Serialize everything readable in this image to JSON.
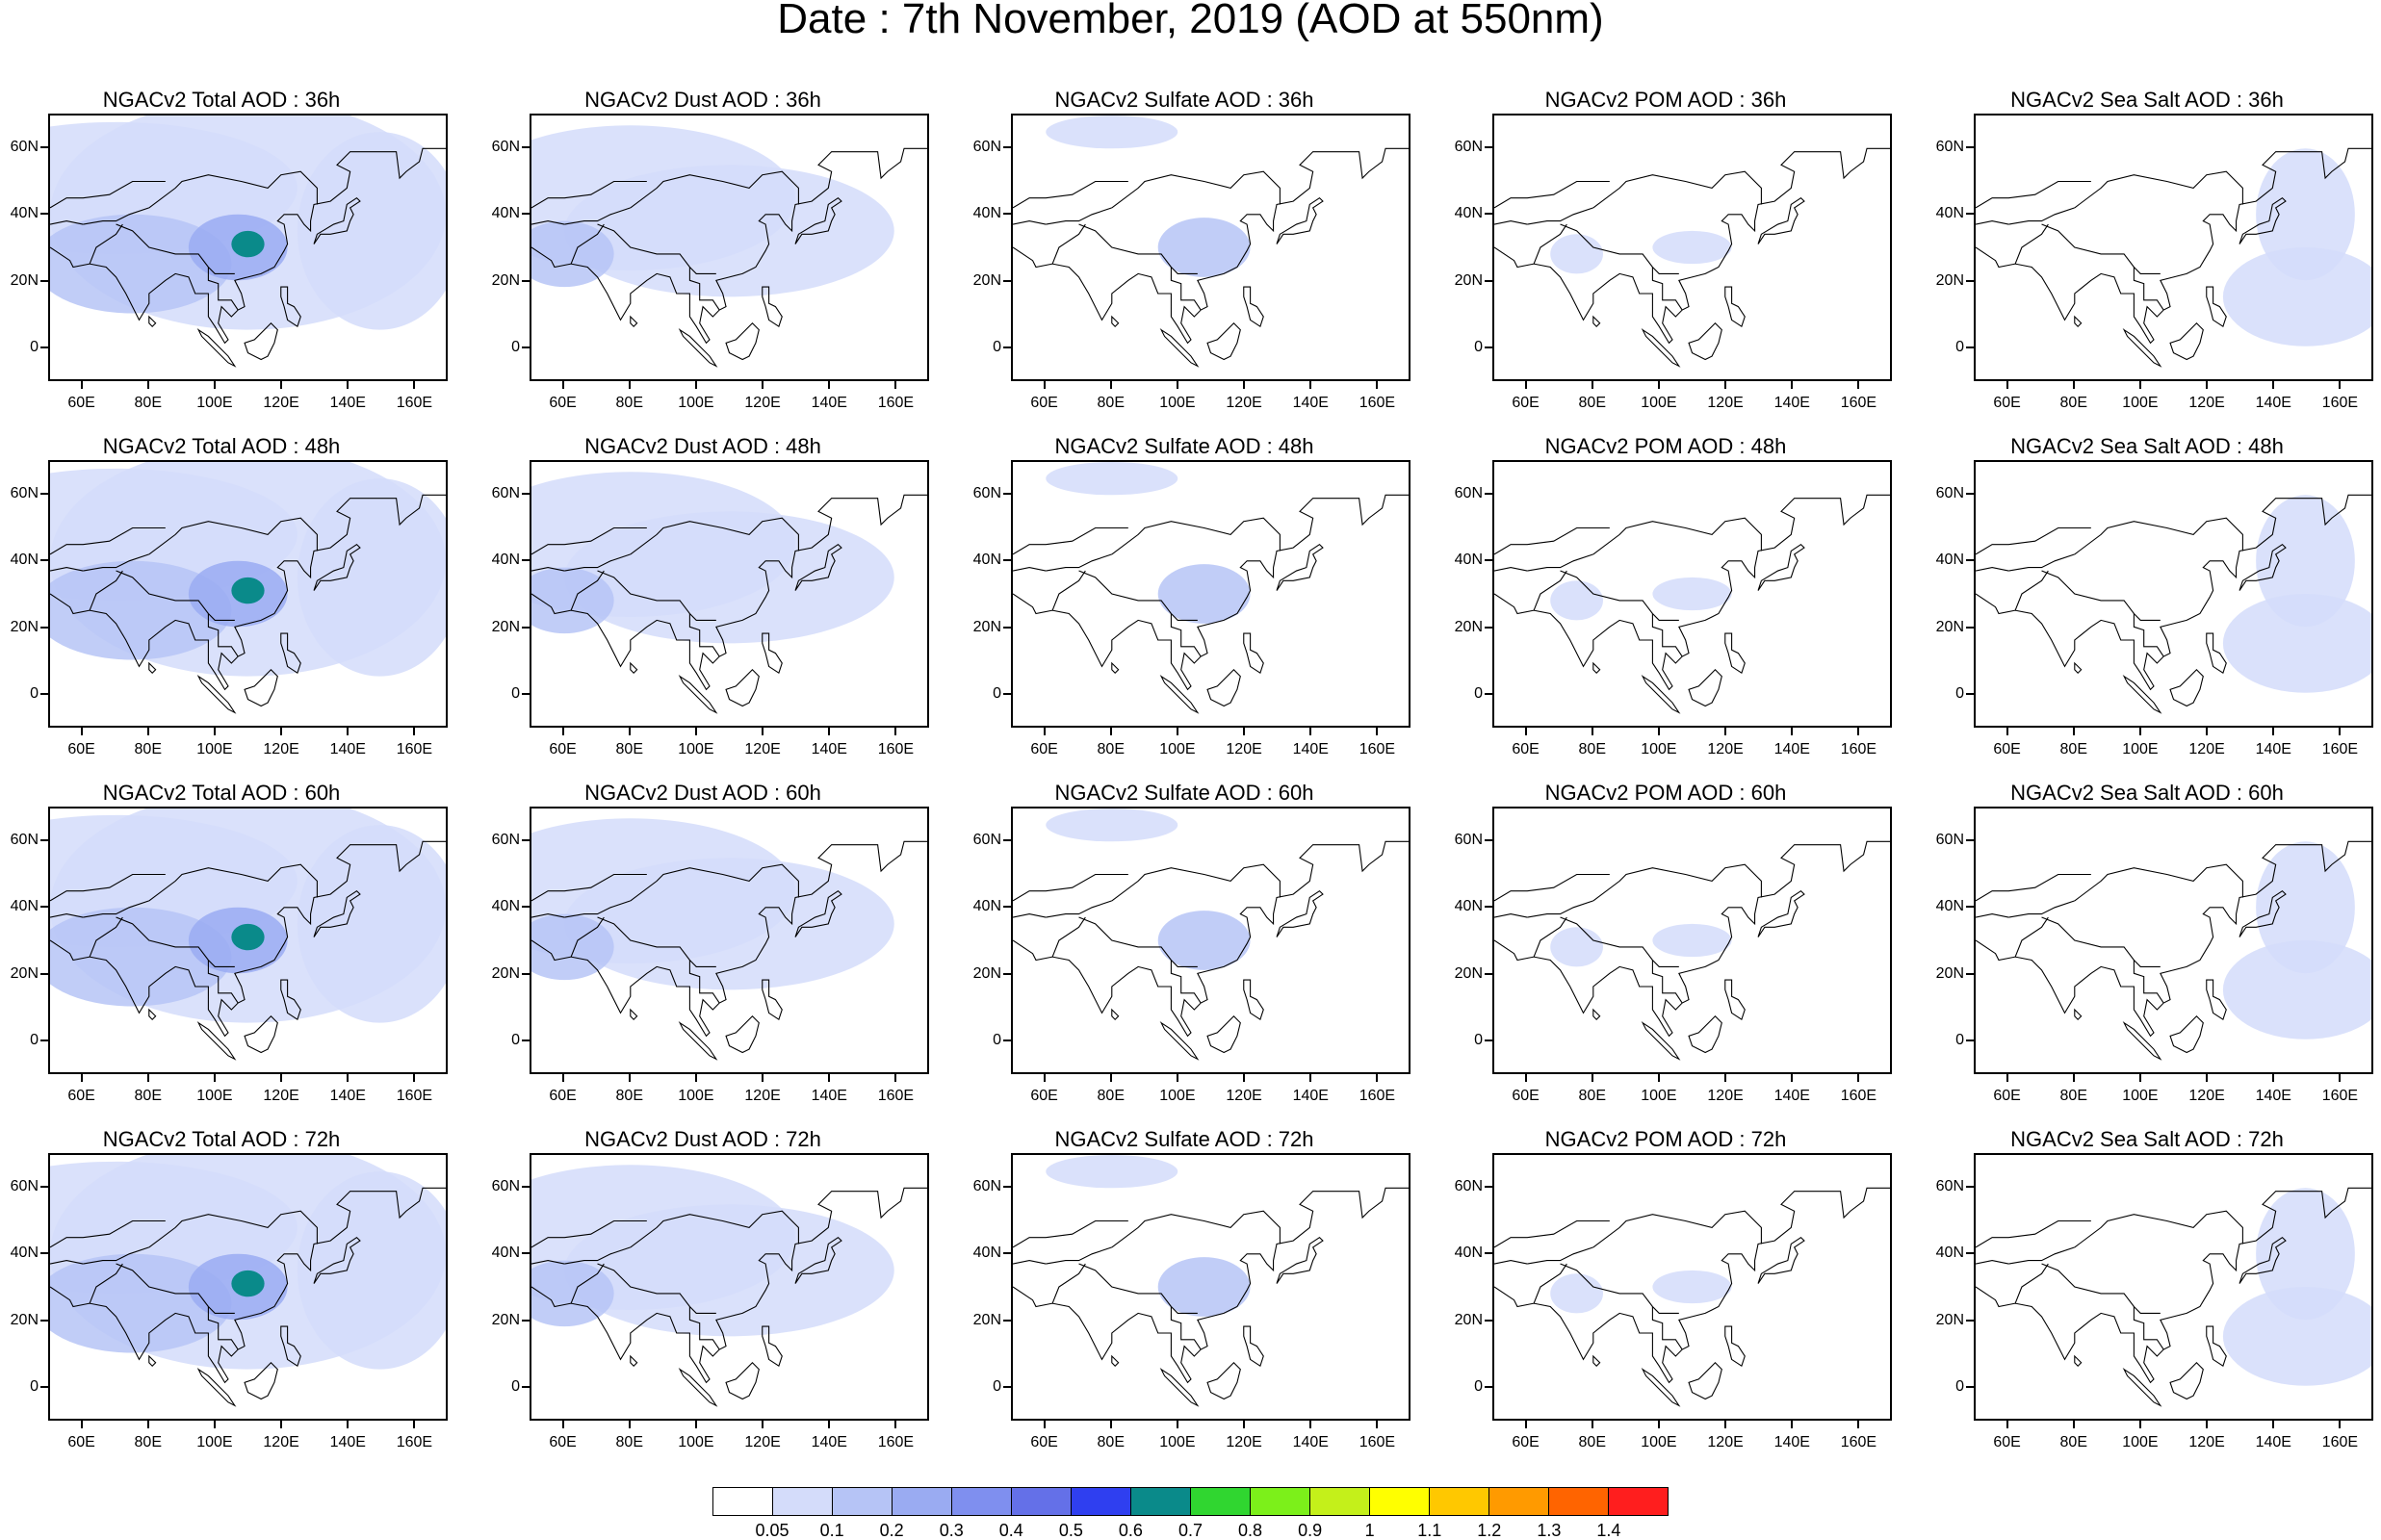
{
  "title": "Date : 7th November, 2019 (AOD at 550nm)",
  "species": [
    "Total",
    "Dust",
    "Sulfate",
    "POM",
    "Sea Salt"
  ],
  "lead_times": [
    "36h",
    "48h",
    "60h",
    "72h"
  ],
  "panel_titles": [
    [
      "NGACv2 Total AOD : 36h",
      "NGACv2 Dust AOD : 36h",
      "NGACv2 Sulfate AOD : 36h",
      "NGACv2 POM AOD : 36h",
      "NGACv2 Sea Salt AOD : 36h"
    ],
    [
      "NGACv2 Total AOD : 48h",
      "NGACv2 Dust AOD : 48h",
      "NGACv2 Sulfate AOD : 48h",
      "NGACv2 POM AOD : 48h",
      "NGACv2 Sea Salt AOD : 48h"
    ],
    [
      "NGACv2 Total AOD : 60h",
      "NGACv2 Dust AOD : 60h",
      "NGACv2 Sulfate AOD : 60h",
      "NGACv2 POM AOD : 60h",
      "NGACv2 Sea Salt AOD : 60h"
    ],
    [
      "NGACv2 Total AOD : 72h",
      "NGACv2 Dust AOD : 72h",
      "NGACv2 Sulfate AOD : 72h",
      "NGACv2 POM AOD : 72h",
      "NGACv2 Sea Salt  AOD : 72h"
    ]
  ],
  "axes": {
    "lon_range": [
      50,
      170
    ],
    "lat_range": [
      -10,
      70
    ],
    "x_ticks": [
      "60E",
      "80E",
      "100E",
      "120E",
      "140E",
      "160E"
    ],
    "x_tick_values": [
      60,
      80,
      100,
      120,
      140,
      160
    ],
    "y_ticks": [
      "60N",
      "40N",
      "20N",
      "0"
    ],
    "y_tick_values": [
      60,
      40,
      20,
      0
    ]
  },
  "colorbar": {
    "labels": [
      "0.05",
      "0.1",
      "0.2",
      "0.3",
      "0.4",
      "0.5",
      "0.6",
      "0.7",
      "0.8",
      "0.9",
      "1",
      "1.1",
      "1.2",
      "1.3",
      "1.4"
    ],
    "colors": [
      "#ffffff",
      "#d4dcfa",
      "#b6c4f6",
      "#9aabf2",
      "#7f8fef",
      "#6470e8",
      "#2f3ff0",
      "#0a8a8a",
      "#30d630",
      "#7cf01a",
      "#c4f01a",
      "#ffff00",
      "#ffc800",
      "#ff9a00",
      "#ff6400",
      "#ff1e1e"
    ]
  },
  "aod_features": {
    "Total": [
      {
        "lon": 70,
        "lat": 48,
        "rx": 55,
        "ry": 20,
        "level": 1
      },
      {
        "lon": 110,
        "lat": 40,
        "rx": 60,
        "ry": 35,
        "level": 1
      },
      {
        "lon": 150,
        "lat": 35,
        "rx": 25,
        "ry": 30,
        "level": 1
      },
      {
        "lon": 75,
        "lat": 25,
        "rx": 30,
        "ry": 15,
        "level": 2
      },
      {
        "lon": 107,
        "lat": 30,
        "rx": 15,
        "ry": 10,
        "level": 3
      },
      {
        "lon": 110,
        "lat": 31,
        "rx": 5,
        "ry": 4,
        "level": 7
      }
    ],
    "Dust": [
      {
        "lon": 80,
        "lat": 45,
        "rx": 50,
        "ry": 22,
        "level": 1
      },
      {
        "lon": 110,
        "lat": 35,
        "rx": 50,
        "ry": 20,
        "level": 1
      },
      {
        "lon": 60,
        "lat": 28,
        "rx": 15,
        "ry": 10,
        "level": 2
      }
    ],
    "Sulfate": [
      {
        "lon": 108,
        "lat": 30,
        "rx": 14,
        "ry": 9,
        "level": 2
      },
      {
        "lon": 80,
        "lat": 65,
        "rx": 20,
        "ry": 5,
        "level": 1
      }
    ],
    "POM": [
      {
        "lon": 75,
        "lat": 28,
        "rx": 8,
        "ry": 6,
        "level": 1
      },
      {
        "lon": 110,
        "lat": 30,
        "rx": 12,
        "ry": 5,
        "level": 1
      }
    ],
    "Sea Salt": [
      {
        "lon": 150,
        "lat": 40,
        "rx": 15,
        "ry": 20,
        "level": 1
      },
      {
        "lon": 150,
        "lat": 15,
        "rx": 25,
        "ry": 15,
        "level": 1
      }
    ]
  }
}
